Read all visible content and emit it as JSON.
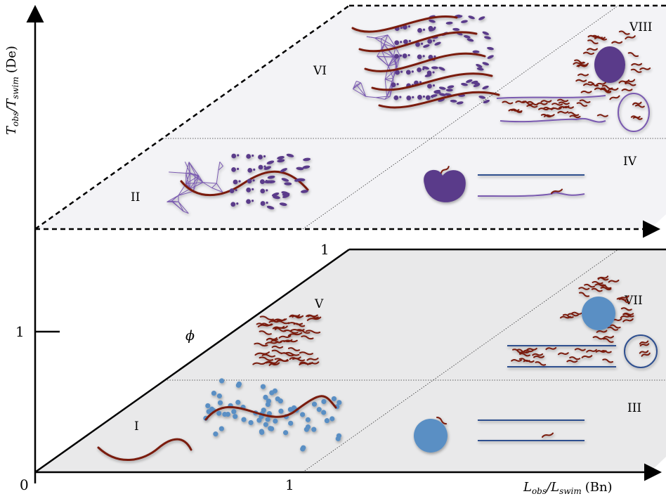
{
  "axes": {
    "y_label_main": "T",
    "y_label_sub1": "obs",
    "y_label_mid": "/T",
    "y_label_sub2": "swim",
    "y_label_unit": "(De)",
    "x_label_main": "L",
    "x_label_sub1": "obs",
    "x_label_mid": "/L",
    "x_label_sub2": "swim",
    "x_label_unit": "(Bn)",
    "origin_tick": "0",
    "x_tick": "1",
    "y_tick": "1",
    "phi_tick": "1",
    "phi_label": "ϕ"
  },
  "regimes": {
    "I": "I",
    "II": "II",
    "III": "III",
    "IV": "IV",
    "V": "V",
    "VI": "VI",
    "VII": "VII",
    "VIII": "VIII"
  },
  "colors": {
    "swimmer": "#7a1a0e",
    "particle": "#5a8fc4",
    "viscoelastic": "#5a3a8a",
    "network": "#7a5ab0",
    "wall": "#2f4f8f",
    "lower_plane": "#e9e9ea",
    "upper_plane": "#f3f3f6"
  }
}
